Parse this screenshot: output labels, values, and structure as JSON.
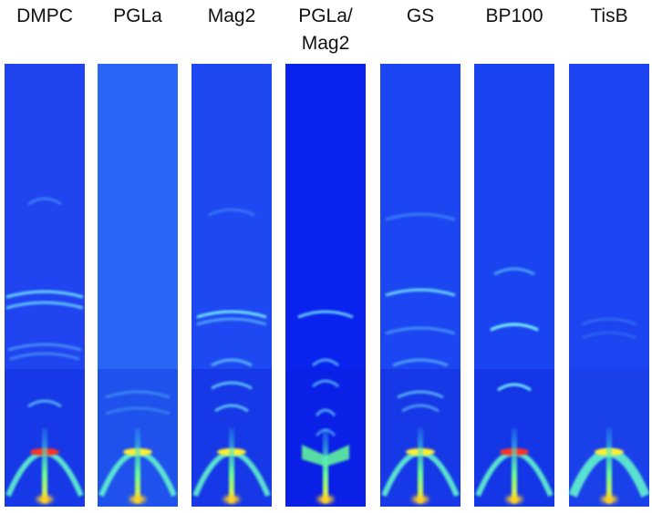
{
  "panels": [
    {
      "label": [
        "DMPC"
      ]
    },
    {
      "label": [
        "PGLa"
      ]
    },
    {
      "label": [
        "Mag2"
      ]
    },
    {
      "label": [
        "PGLa/",
        "Mag2"
      ]
    },
    {
      "label": [
        "GS"
      ]
    },
    {
      "label": [
        "BP100"
      ]
    },
    {
      "label": [
        "TisB"
      ]
    }
  ]
}
